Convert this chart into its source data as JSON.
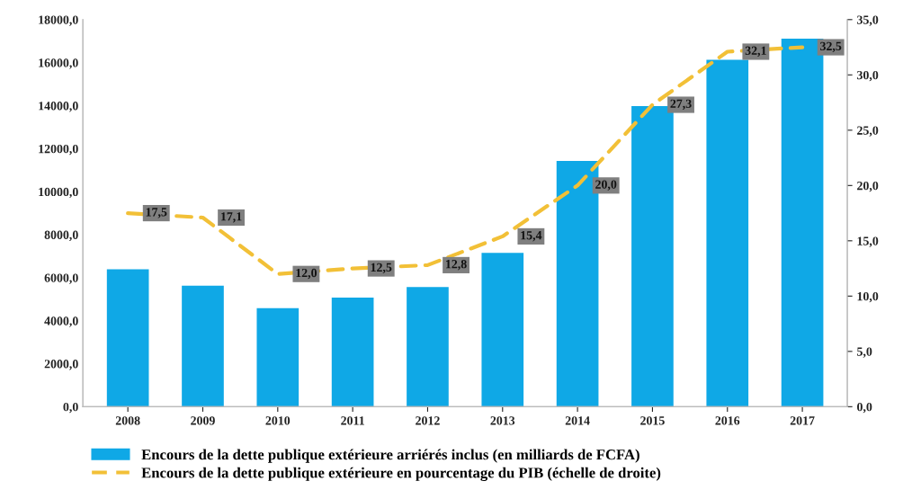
{
  "chart_data": {
    "type": "bar",
    "categories": [
      "2008",
      "2009",
      "2010",
      "2011",
      "2012",
      "2013",
      "2014",
      "2015",
      "2016",
      "2017"
    ],
    "series": [
      {
        "name": "Encours de la dette publique extérieure arriérés inclus (en milliards de FCFA)",
        "color": "#0fa8e6",
        "values": [
          6390,
          5630,
          4580,
          5070,
          5560,
          7150,
          11430,
          13980,
          16130,
          17110
        ]
      },
      {
        "name": "Encours de la dette publique extérieure en pourcentage du PIB (échelle de droite)",
        "type": "line",
        "axis": "y2",
        "color": "#f2c037",
        "line_style": "dashed",
        "values": [
          17.5,
          17.1,
          12.0,
          12.5,
          12.8,
          15.4,
          20.0,
          27.3,
          32.1,
          32.5
        ],
        "value_labels": [
          "17,5",
          "17,1",
          "12,0",
          "12,5",
          "12,8",
          "15,4",
          "20,0",
          "27,3",
          "32,1",
          "32,5"
        ]
      }
    ],
    "ylim": [
      0,
      18000
    ],
    "yticks": [
      {
        "value": 0,
        "label": "0,0"
      },
      {
        "value": 2000,
        "label": "2000,0"
      },
      {
        "value": 4000,
        "label": "4000,0"
      },
      {
        "value": 6000,
        "label": "6000,0"
      },
      {
        "value": 8000,
        "label": "8000,0"
      },
      {
        "value": 10000,
        "label": "10000,0"
      },
      {
        "value": 12000,
        "label": "12000,0"
      },
      {
        "value": 14000,
        "label": "14000,0"
      },
      {
        "value": 16000,
        "label": "16000,0"
      },
      {
        "value": 18000,
        "label": "18000,0"
      }
    ],
    "y2lim": [
      0,
      35
    ],
    "y2ticks": [
      {
        "value": 0,
        "label": "0,0"
      },
      {
        "value": 5,
        "label": "5,0"
      },
      {
        "value": 10,
        "label": "10,0"
      },
      {
        "value": 15,
        "label": "15,0"
      },
      {
        "value": 20,
        "label": "20,0"
      },
      {
        "value": 25,
        "label": "25,0"
      },
      {
        "value": 30,
        "label": "30,0"
      },
      {
        "value": 35,
        "label": "35,0"
      }
    ],
    "grid": false,
    "legend": "bottom"
  }
}
